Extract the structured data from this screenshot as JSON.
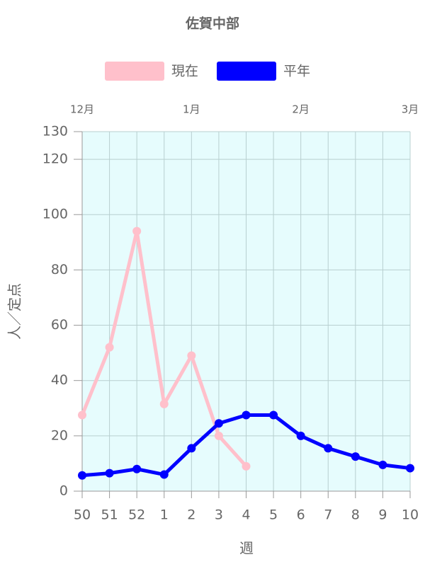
{
  "chart_data": {
    "type": "line",
    "title": "佐賀中部",
    "categories": [
      "50",
      "51",
      "52",
      "1",
      "2",
      "3",
      "4",
      "5",
      "6",
      "7",
      "8",
      "9",
      "10"
    ],
    "series": [
      {
        "name": "現在",
        "color": "#ffc0cb",
        "values": [
          27.5,
          52,
          94,
          31.5,
          49,
          20,
          9,
          null,
          null,
          null,
          null,
          null,
          null
        ]
      },
      {
        "name": "平年",
        "color": "#0000ff",
        "values": [
          5.7,
          6.5,
          8,
          6,
          15.5,
          24.5,
          27.5,
          27.5,
          20,
          15.5,
          12.5,
          9.5,
          8.3
        ]
      }
    ],
    "top_labels": [
      {
        "label": "12月",
        "category": "50"
      },
      {
        "label": "1月",
        "category": "2"
      },
      {
        "label": "2月",
        "category": "6"
      },
      {
        "label": "3月",
        "category": "10"
      }
    ],
    "ylim": [
      0,
      130
    ],
    "yticks": [
      0,
      20,
      40,
      60,
      80,
      100,
      120,
      130
    ],
    "y_label": "人／定点",
    "x_label": "週",
    "grid": true,
    "background": "#e6fcfd"
  }
}
